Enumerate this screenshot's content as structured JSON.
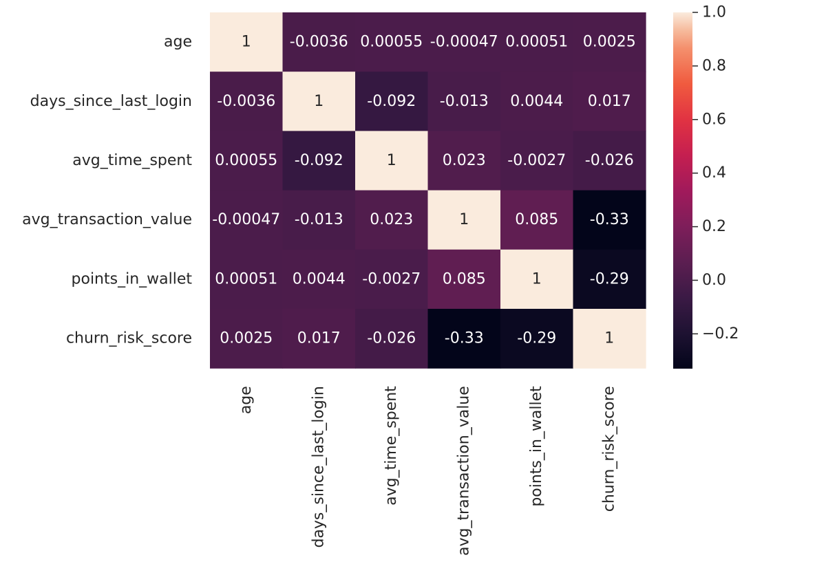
{
  "chart_data": {
    "type": "heatmap",
    "title": "",
    "xlabel": "",
    "ylabel": "",
    "rows": [
      "age",
      "days_since_last_login",
      "avg_time_spent",
      "avg_transaction_value",
      "points_in_wallet",
      "churn_risk_score"
    ],
    "columns": [
      "age",
      "days_since_last_login",
      "avg_time_spent",
      "avg_transaction_value",
      "points_in_wallet",
      "churn_risk_score"
    ],
    "values": [
      [
        1,
        -0.0036,
        0.00055,
        -0.00047,
        0.00051,
        0.0025
      ],
      [
        -0.0036,
        1,
        -0.092,
        -0.013,
        0.0044,
        0.017
      ],
      [
        0.00055,
        -0.092,
        1,
        0.023,
        -0.0027,
        -0.026
      ],
      [
        -0.00047,
        -0.013,
        0.023,
        1,
        0.085,
        -0.33
      ],
      [
        0.00051,
        0.0044,
        -0.0027,
        0.085,
        1,
        -0.29
      ],
      [
        0.0025,
        0.017,
        -0.026,
        -0.33,
        -0.29,
        1
      ]
    ],
    "annotations": [
      [
        "1",
        "-0.0036",
        "0.00055",
        "-0.00047",
        "0.00051",
        "0.0025"
      ],
      [
        "-0.0036",
        "1",
        "-0.092",
        "-0.013",
        "0.0044",
        "0.017"
      ],
      [
        "0.00055",
        "-0.092",
        "1",
        "0.023",
        "-0.0027",
        "-0.026"
      ],
      [
        "-0.00047",
        "-0.013",
        "0.023",
        "1",
        "0.085",
        "-0.33"
      ],
      [
        "0.00051",
        "0.0044",
        "-0.0027",
        "0.085",
        "1",
        "-0.29"
      ],
      [
        "0.0025",
        "0.017",
        "-0.026",
        "-0.33",
        "-0.29",
        "1"
      ]
    ],
    "colormap": "rocket",
    "color_range": [
      -0.33,
      1
    ],
    "colorbar_ticks": [
      {
        "value": 1.0,
        "label": "1.0"
      },
      {
        "value": 0.8,
        "label": "0.8"
      },
      {
        "value": 0.6,
        "label": "0.6"
      },
      {
        "value": 0.4,
        "label": "0.4"
      },
      {
        "value": 0.2,
        "label": "0.2"
      },
      {
        "value": 0.0,
        "label": "0.0"
      },
      {
        "value": -0.2,
        "label": "−0.2"
      }
    ],
    "legend": "right",
    "grid": false
  }
}
